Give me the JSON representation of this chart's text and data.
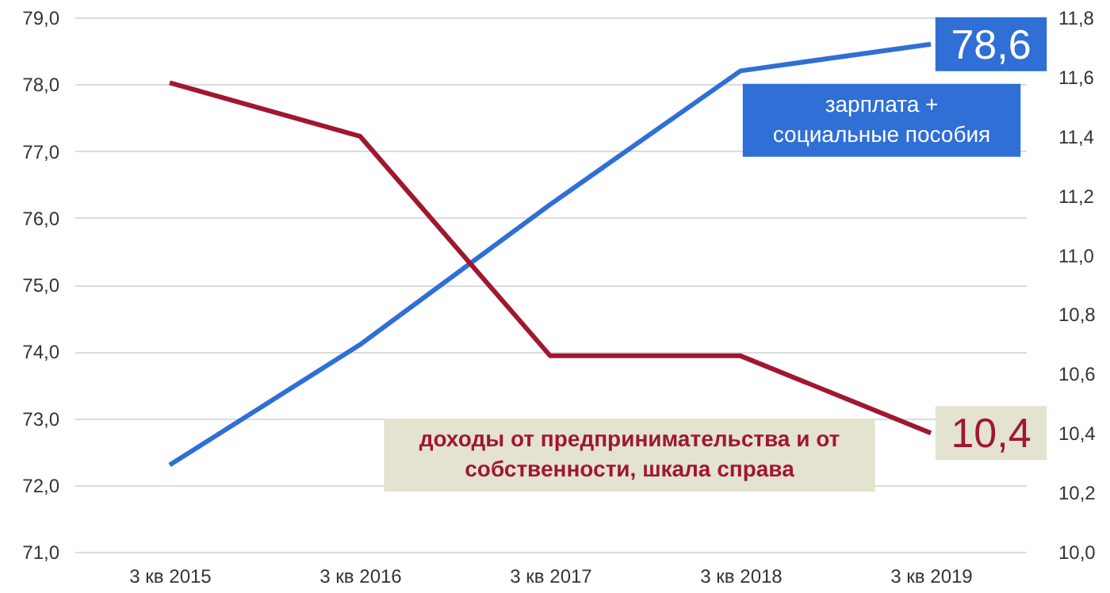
{
  "chart_data": {
    "type": "line",
    "categories": [
      "3 кв 2015",
      "3 кв 2016",
      "3 кв 2017",
      "3 кв 2018",
      "3 кв 2019"
    ],
    "series": [
      {
        "name": "зарплата + социальные пособия",
        "color": "#2f6fd6",
        "values": [
          72.3,
          74.1,
          76.2,
          78.2,
          78.6
        ],
        "value_labels": [
          null,
          null,
          null,
          null,
          "78,6"
        ]
      },
      {
        "name": "доходы от предпринимательства и от собственности, шкала справа",
        "color": "#a0172f",
        "axis": "y2",
        "values": [
          11.58,
          11.4,
          10.66,
          10.66,
          10.4
        ],
        "value_labels": [
          null,
          null,
          null,
          null,
          "10,4"
        ]
      }
    ],
    "ylim": [
      71,
      79
    ],
    "yticks": [
      {
        "value": 71,
        "label": "71,0"
      },
      {
        "value": 72,
        "label": "72,0"
      },
      {
        "value": 73,
        "label": "73,0"
      },
      {
        "value": 74,
        "label": "74,0"
      },
      {
        "value": 75,
        "label": "75,0"
      },
      {
        "value": 76,
        "label": "76,0"
      },
      {
        "value": 77,
        "label": "77,0"
      },
      {
        "value": 78,
        "label": "78,0"
      },
      {
        "value": 79,
        "label": "79,0"
      }
    ],
    "y2lim": [
      10,
      11.8
    ],
    "y2ticks": [
      {
        "value": 10,
        "label": "10,0"
      },
      {
        "value": 10.2,
        "label": "10,2"
      },
      {
        "value": 10.4,
        "label": "10,4"
      },
      {
        "value": 10.6,
        "label": "10,6"
      },
      {
        "value": 10.8,
        "label": "10,8"
      },
      {
        "value": 11,
        "label": "11,0"
      },
      {
        "value": 11.2,
        "label": "11,2"
      },
      {
        "value": 11.4,
        "label": "11,4"
      },
      {
        "value": 11.6,
        "label": "11,6"
      },
      {
        "value": 11.8,
        "label": "11,8"
      }
    ],
    "grid": "y",
    "line_style": "solid",
    "marker": "none"
  }
}
